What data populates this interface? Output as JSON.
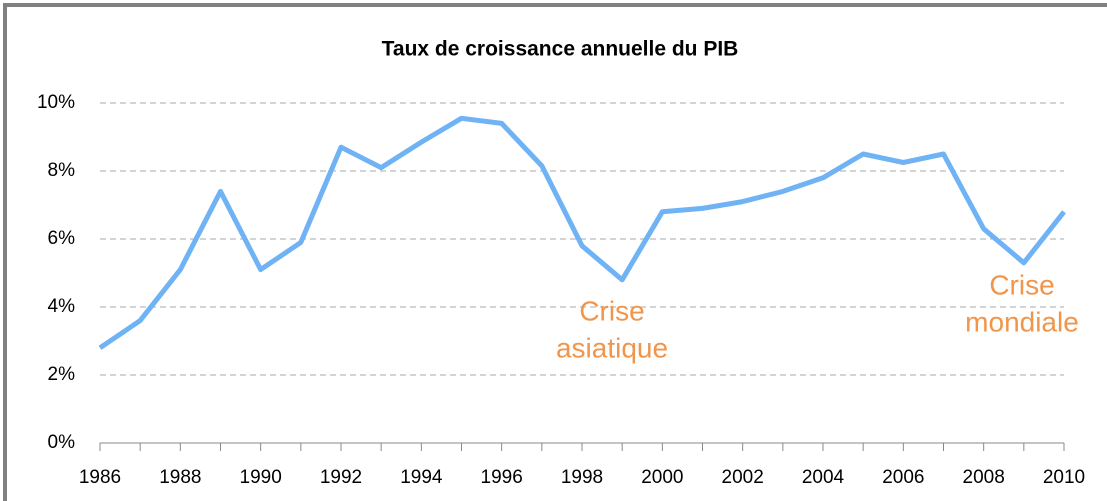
{
  "chart_data": {
    "type": "line",
    "title": "Taux de croissance annuelle du PIB",
    "x": [
      1986,
      1987,
      1988,
      1989,
      1990,
      1991,
      1992,
      1993,
      1994,
      1995,
      1996,
      1997,
      1998,
      1999,
      2000,
      2001,
      2002,
      2003,
      2004,
      2005,
      2006,
      2007,
      2008,
      2009,
      2010
    ],
    "series": [
      {
        "name": "PIB",
        "color": "#6fb3f5",
        "values": [
          2.8,
          3.6,
          5.1,
          7.4,
          5.1,
          5.9,
          8.7,
          8.1,
          8.85,
          9.55,
          9.4,
          8.15,
          5.8,
          4.8,
          6.8,
          6.9,
          7.1,
          7.4,
          7.8,
          8.5,
          8.25,
          8.5,
          6.3,
          5.3,
          6.8
        ]
      }
    ],
    "xlim": [
      1986,
      2010
    ],
    "xticks": [
      1986,
      1988,
      1990,
      1992,
      1994,
      1996,
      1998,
      2000,
      2002,
      2004,
      2006,
      2008,
      2010
    ],
    "ylim": [
      0,
      10
    ],
    "yticks": [
      {
        "value": 0,
        "label": "0%"
      },
      {
        "value": 2,
        "label": "2%"
      },
      {
        "value": 4,
        "label": "4%"
      },
      {
        "value": 6,
        "label": "6%"
      },
      {
        "value": 8,
        "label": "8%"
      },
      {
        "value": 10,
        "label": "10%"
      }
    ],
    "grid": true,
    "annotations": [
      {
        "lines": [
          "Crise",
          "asiatique"
        ],
        "color": "#f0954a"
      },
      {
        "lines": [
          "Crise",
          "mondiale"
        ],
        "color": "#f0954a"
      }
    ]
  }
}
